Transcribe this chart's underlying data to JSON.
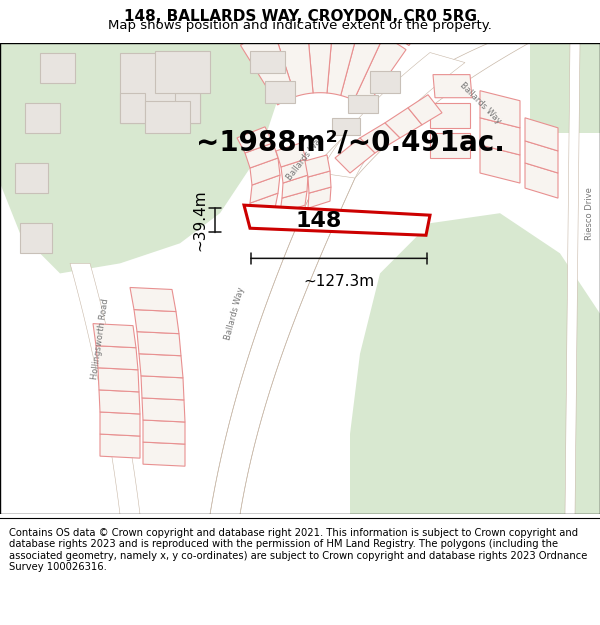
{
  "title": "148, BALLARDS WAY, CROYDON, CR0 5RG",
  "subtitle": "Map shows position and indicative extent of the property.",
  "area_text": "~1988m²/~0.491ac.",
  "label_148": "148",
  "dim_width": "~127.3m",
  "dim_height": "~39.4m",
  "footer": "Contains OS data © Crown copyright and database right 2021. This information is subject to Crown copyright and database rights 2023 and is reproduced with the permission of HM Land Registry. The polygons (including the associated geometry, namely x, y co-ordinates) are subject to Crown copyright and database rights 2023 Ordnance Survey 100026316.",
  "bg_color": "#ede8e0",
  "green_color": "#d8e8d0",
  "green_dark": "#c8dcc0",
  "road_white": "#ffffff",
  "road_gray": "#e8e4dc",
  "road_edge": "#c8b8a8",
  "plot_edge": "#e89090",
  "plot_fill": "#f8f4f0",
  "highlight_edge": "#cc0000",
  "highlight_fill": "#ffffff",
  "building_fill": "#e8e4e0",
  "building_edge": "#c8c0b8",
  "dim_color": "#111111",
  "title_fontsize": 11,
  "subtitle_fontsize": 9.5,
  "area_fontsize": 20,
  "label_fontsize": 16,
  "dim_fontsize": 11,
  "road_label_fontsize": 6,
  "footer_fontsize": 7.2,
  "fig_width": 6.0,
  "fig_height": 6.25
}
